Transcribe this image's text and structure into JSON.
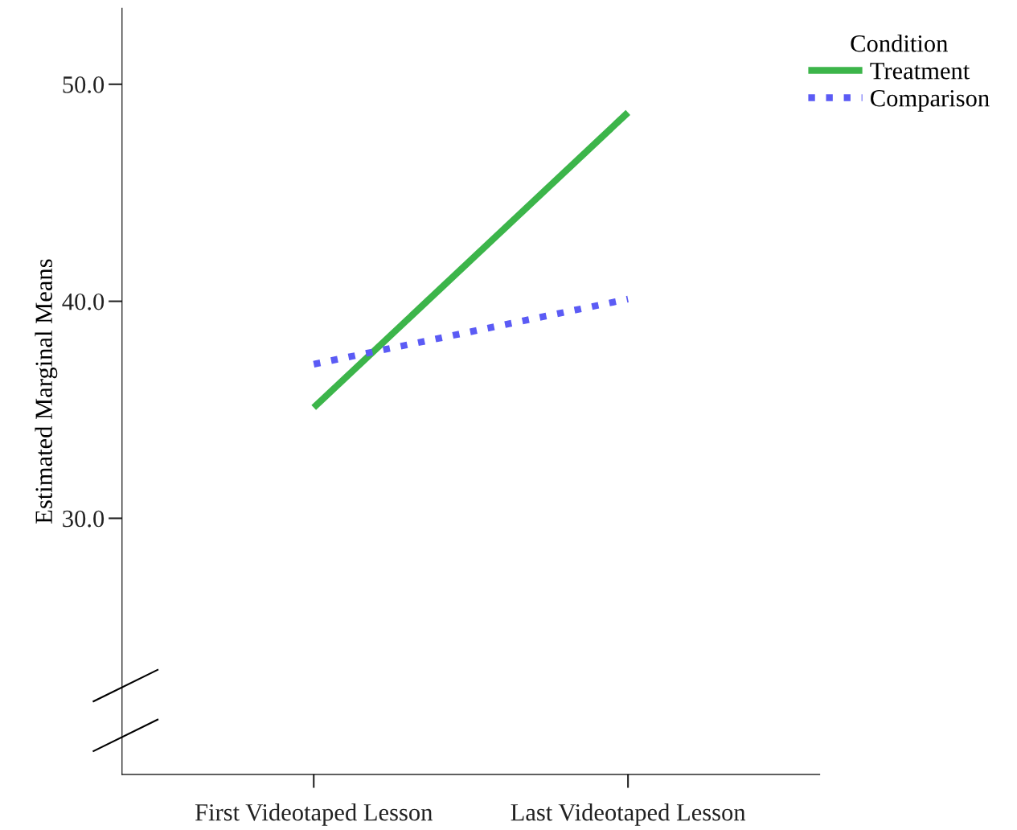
{
  "chart_data": {
    "type": "line",
    "ylabel": "Estimated Marginal Means",
    "legend_title": "Condition",
    "legend": "top right",
    "grid": false,
    "categories": [
      "First Videotaped Lesson",
      "Last Videotaped Lesson"
    ],
    "ylim": [
      18.2,
      53.5
    ],
    "yticks": [
      {
        "value": 30,
        "label": "30.0"
      },
      {
        "value": 40,
        "label": "40.0"
      },
      {
        "value": 50,
        "label": "50.0"
      }
    ],
    "series": [
      {
        "name": "Treatment",
        "color": "#3cb54a",
        "line_style": "solid",
        "values": [
          35.1,
          48.7
        ]
      },
      {
        "name": "Comparison",
        "color": "#5b5bf5",
        "line_style": "dotted",
        "values": [
          37.1,
          40.1
        ]
      }
    ]
  }
}
